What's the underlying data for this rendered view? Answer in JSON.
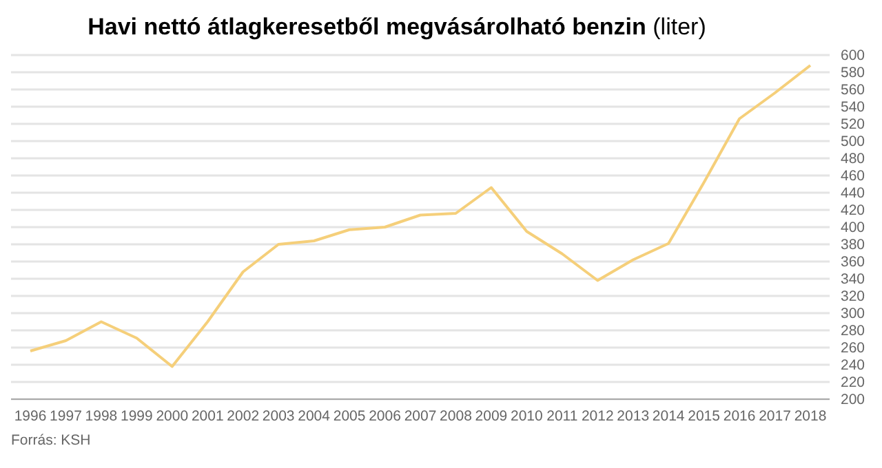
{
  "chart_data": {
    "type": "line",
    "title": "Havi nettó átlagkeresetből megvásárolható benzin",
    "ylabel": "(liter)",
    "categories": [
      "1996",
      "1997",
      "1998",
      "1999",
      "2000",
      "2001",
      "2002",
      "2003",
      "2004",
      "2005",
      "2006",
      "2007",
      "2008",
      "2009",
      "2010",
      "2011",
      "2012",
      "2013",
      "2014",
      "2015",
      "2016",
      "2017",
      "2018"
    ],
    "series": [
      {
        "color": "#f5cf7a",
        "values": [
          256,
          268,
          290,
          271,
          238,
          290,
          348,
          380,
          384,
          397,
          400,
          414,
          416,
          446,
          395,
          369,
          338,
          362,
          381,
          452,
          526,
          556,
          588
        ]
      }
    ],
    "ylim": [
      200,
      600
    ],
    "yticks": [
      200,
      220,
      240,
      260,
      280,
      300,
      320,
      340,
      360,
      380,
      400,
      420,
      440,
      460,
      480,
      500,
      520,
      540,
      560,
      580,
      600
    ],
    "grid": "y",
    "marker": "none",
    "line_style": "solid",
    "annotations": [
      "Forrás: KSH"
    ]
  }
}
